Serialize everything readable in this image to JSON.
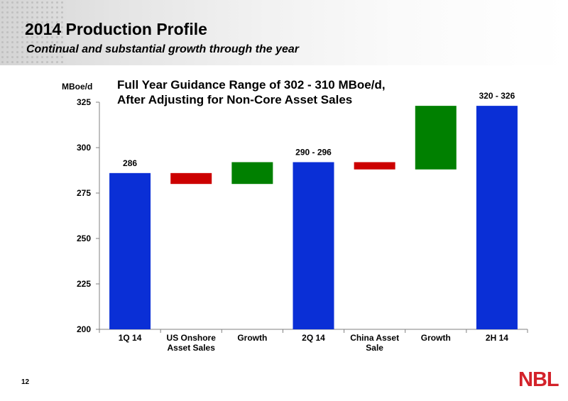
{
  "header": {
    "title": "2014 Production Profile",
    "subtitle": "Continual and substantial growth through the year"
  },
  "footer": {
    "page_number": "12",
    "logo_text": "NBL"
  },
  "chart_data": {
    "type": "bar",
    "subtype": "waterfall",
    "annotation": "Full Year Guidance Range of 302 - 310 MBoe/d, After Adjusting for Non-Core Asset Sales",
    "annotation_lines": [
      "Full Year Guidance Range of 302 - 310 MBoe/d,",
      "After Adjusting for Non-Core Asset Sales"
    ],
    "ylabel": "MBoe/d",
    "ylim": [
      200,
      325
    ],
    "yticks": [
      200,
      225,
      250,
      275,
      300,
      325
    ],
    "grid": false,
    "categories": [
      "1Q 14",
      "US Onshore Asset Sales",
      "Growth",
      "2Q 14",
      "China Asset Sale",
      "Growth",
      "2H 14"
    ],
    "category_label_lines": [
      [
        "1Q 14"
      ],
      [
        "US Onshore",
        "Asset Sales"
      ],
      [
        "Growth"
      ],
      [
        "2Q 14"
      ],
      [
        "China Asset",
        "Sale"
      ],
      [
        "Growth"
      ],
      [
        "2H 14"
      ]
    ],
    "bars": [
      {
        "category": "1Q 14",
        "low": 200,
        "high": 286,
        "kind": "total",
        "label": "286"
      },
      {
        "category": "US Onshore Asset Sales",
        "low": 280,
        "high": 286,
        "kind": "decrease",
        "label": ""
      },
      {
        "category": "Growth",
        "low": 280,
        "high": 292,
        "kind": "increase",
        "label": ""
      },
      {
        "category": "2Q 14",
        "low": 200,
        "high": 292,
        "kind": "total",
        "label": "290 - 296"
      },
      {
        "category": "China Asset Sale",
        "low": 288,
        "high": 292,
        "kind": "decrease",
        "label": ""
      },
      {
        "category": "Growth",
        "low": 288,
        "high": 323,
        "kind": "increase",
        "label": ""
      },
      {
        "category": "2H 14",
        "low": 200,
        "high": 323,
        "kind": "total",
        "label": "320 - 326"
      }
    ],
    "colors": {
      "total": "#0a2fd6",
      "decrease": "#cc0000",
      "increase": "#008000",
      "axis": "#808080"
    }
  }
}
